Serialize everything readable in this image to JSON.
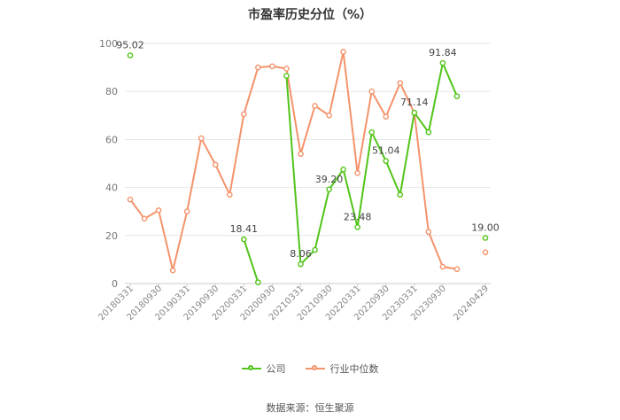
{
  "chart_data": {
    "type": "line",
    "title": "市盈率历史分位（%）",
    "ylim": [
      0,
      100
    ],
    "yticks": [
      0,
      20,
      40,
      60,
      80,
      100
    ],
    "x": [
      "20180331",
      "20180630",
      "20180930",
      "20181231",
      "20190331",
      "20190630",
      "20190930",
      "20191231",
      "20200331",
      "20200630",
      "20200930",
      "20201231",
      "20210331",
      "20210630",
      "20210930",
      "20211231",
      "20220331",
      "20220630",
      "20220930",
      "20221231",
      "20230331",
      "20230630",
      "20230930",
      "20231231",
      "20240331",
      "20240429"
    ],
    "xtick_labels": [
      "20180331",
      "20180930",
      "20190331",
      "20190930",
      "20200331",
      "20200930",
      "20210331",
      "20210930",
      "20220331",
      "20220930",
      "20230331",
      "20230930",
      "20240429"
    ],
    "series": [
      {
        "name": "公司",
        "color": "#52c41a",
        "values": [
          95.02,
          null,
          null,
          null,
          null,
          null,
          null,
          null,
          18.41,
          0.5,
          null,
          86.5,
          8.06,
          14.0,
          39.2,
          47.5,
          23.48,
          63.0,
          51.04,
          37.0,
          71.14,
          63.0,
          91.84,
          78.0,
          null,
          19.0
        ],
        "labels": {
          "0": "95.02",
          "8": "18.41",
          "12": "8.06",
          "14": "39.20",
          "16": "23.48",
          "18": "51.04",
          "20": "71.14",
          "22": "91.84",
          "25": "19.00"
        }
      },
      {
        "name": "行业中位数",
        "color": "#f4936b",
        "values": [
          35.0,
          27.0,
          30.5,
          5.5,
          30.0,
          60.5,
          49.5,
          37.0,
          70.5,
          90.0,
          90.5,
          89.5,
          54.0,
          74.0,
          70.0,
          96.5,
          46.0,
          80.0,
          69.5,
          83.5,
          71.0,
          21.5,
          7.0,
          6.0,
          null,
          13.0
        ]
      }
    ],
    "grid": true,
    "legend": "bottom"
  },
  "source": "数据来源：恒生聚源"
}
